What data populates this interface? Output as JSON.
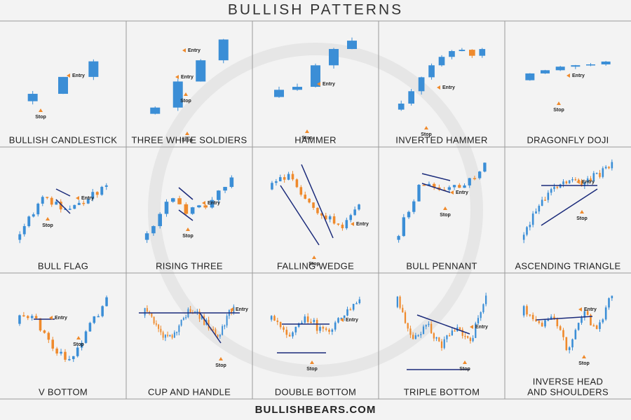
{
  "title": "BULLISH PATTERNS",
  "footer": "BULLISHBEARS.COM",
  "patterns": [
    {
      "name": [
        "BULLISH CANDLESTICK"
      ],
      "markers": [
        "Entry",
        "Stop"
      ]
    },
    {
      "name": [
        "THREE WHITE SOLDIERS"
      ],
      "markers": [
        "Entry",
        "Entry",
        "Stop",
        "Stop"
      ]
    },
    {
      "name": [
        "HAMMER"
      ],
      "markers": [
        "Entry",
        "Stop"
      ]
    },
    {
      "name": [
        "INVERTED HAMMER"
      ],
      "markers": [
        "Entry",
        "Stop"
      ]
    },
    {
      "name": [
        "DRAGONFLY DOJI"
      ],
      "markers": [
        "Entry",
        "Stop"
      ]
    },
    {
      "name": [
        "BULL FLAG"
      ],
      "markers": [
        "Entry",
        "Stop"
      ]
    },
    {
      "name": [
        "RISING THREE"
      ],
      "markers": [
        "Entry",
        "Stop"
      ]
    },
    {
      "name": [
        "FALLING WEDGE"
      ],
      "markers": [
        "Entry",
        "Stop"
      ]
    },
    {
      "name": [
        "BULL PENNANT"
      ],
      "markers": [
        "Entry",
        "Stop"
      ]
    },
    {
      "name": [
        "ASCENDING TRIANGLE"
      ],
      "markers": [
        "Entry",
        "Stop"
      ]
    },
    {
      "name": [
        "V BOTTOM"
      ],
      "markers": [
        "Entry",
        "Stop"
      ]
    },
    {
      "name": [
        "CUP AND HANDLE"
      ],
      "markers": [
        "Entry",
        "Stop"
      ]
    },
    {
      "name": [
        "DOUBLE BOTTOM"
      ],
      "markers": [
        "Entry",
        "Stop"
      ]
    },
    {
      "name": [
        "TRIPLE BOTTOM"
      ],
      "markers": [
        "Entry",
        "Stop"
      ]
    },
    {
      "name": [
        "INVERSE HEAD",
        "AND SHOULDERS"
      ],
      "markers": [
        "Entry",
        "Stop"
      ]
    }
  ]
}
